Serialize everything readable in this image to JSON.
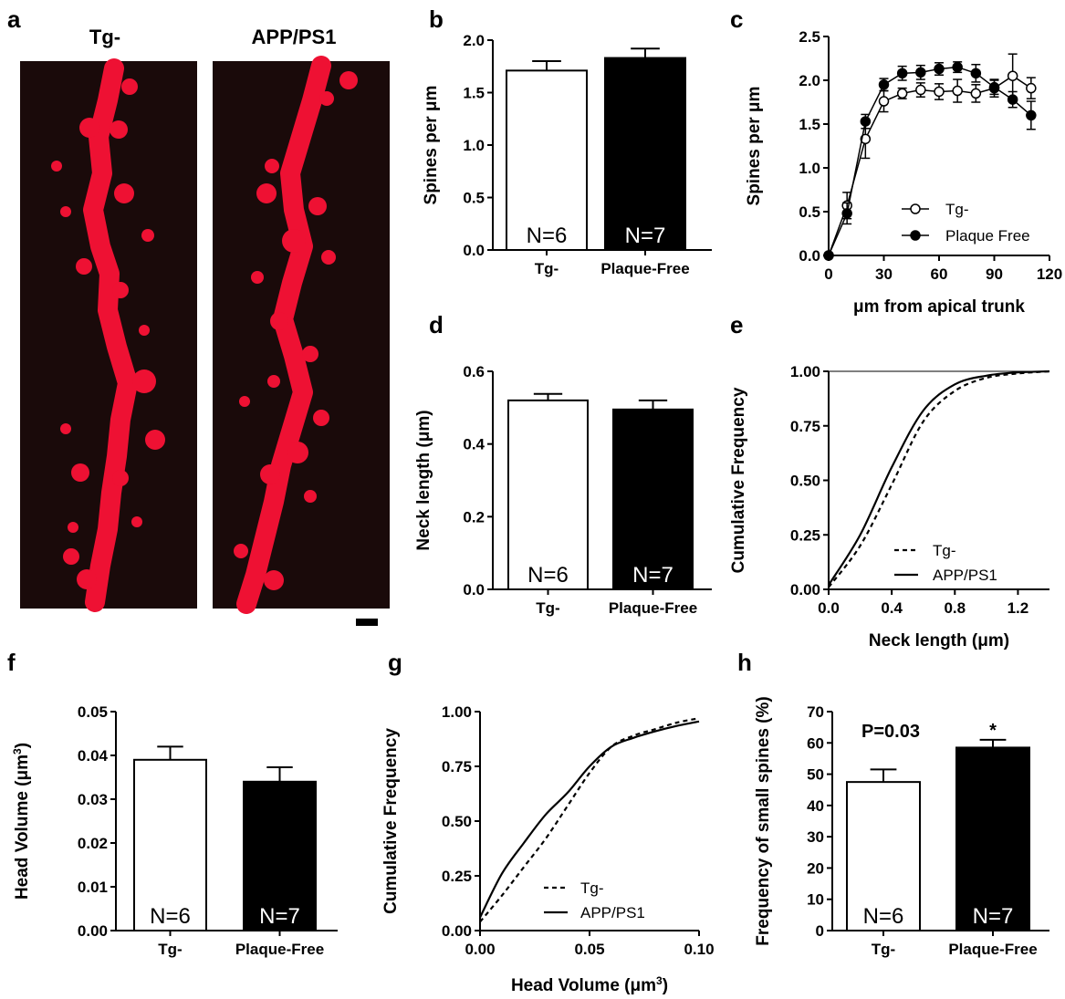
{
  "panel_a": {
    "label": "a",
    "left_title": "Tg-",
    "right_title": "APP/PS1"
  },
  "colors": {
    "dendrite": "#ee1133",
    "background": "#1a0a0a",
    "bar_tg": "#ffffff",
    "bar_pf": "#000000"
  },
  "chart_data": [
    {
      "id": "b",
      "label": "b",
      "type": "bar",
      "categories": [
        "Tg-",
        "Plaque-Free"
      ],
      "values": [
        1.71,
        1.83
      ],
      "errors": [
        0.09,
        0.09
      ],
      "n_labels": [
        "N=6",
        "N=7"
      ],
      "ylabel": "Spines per μm",
      "xlabel": "",
      "ylim": [
        0,
        2.0
      ],
      "yticks": [
        "0.0",
        "0.5",
        "1.0",
        "1.5",
        "2.0"
      ],
      "ytick_values": [
        0,
        0.5,
        1.0,
        1.5,
        2.0
      ],
      "fills": [
        "#ffffff",
        "#000000"
      ]
    },
    {
      "id": "c",
      "label": "c",
      "type": "line",
      "xlabel": "μm from apical trunk",
      "ylabel": "Spines per μm",
      "xlim": [
        0,
        120
      ],
      "ylim": [
        0,
        2.5
      ],
      "xticks": [
        "0",
        "30",
        "60",
        "90",
        "120"
      ],
      "xtick_values": [
        0,
        30,
        60,
        90,
        120
      ],
      "yticks": [
        "0.0",
        "0.5",
        "1.0",
        "1.5",
        "2.0",
        "2.5"
      ],
      "ytick_values": [
        0,
        0.5,
        1.0,
        1.5,
        2.0,
        2.5
      ],
      "legend_position": "bottom-right",
      "series": [
        {
          "name": "Tg-",
          "marker": "open-circle",
          "x": [
            0,
            10,
            20,
            30,
            40,
            50,
            60,
            70,
            80,
            90,
            100,
            110
          ],
          "y": [
            0,
            0.57,
            1.33,
            1.76,
            1.85,
            1.89,
            1.87,
            1.88,
            1.85,
            1.91,
            2.05,
            1.91
          ],
          "err": [
            0,
            0.15,
            0.22,
            0.12,
            0.06,
            0.08,
            0.09,
            0.13,
            0.1,
            0.1,
            0.25,
            0.12
          ]
        },
        {
          "name": "Plaque Free",
          "marker": "filled-circle",
          "x": [
            0,
            10,
            20,
            30,
            40,
            50,
            60,
            70,
            80,
            90,
            100,
            110
          ],
          "y": [
            0,
            0.48,
            1.53,
            1.95,
            2.08,
            2.09,
            2.13,
            2.15,
            2.08,
            1.92,
            1.78,
            1.6
          ],
          "err": [
            0,
            0.12,
            0.08,
            0.07,
            0.08,
            0.08,
            0.07,
            0.06,
            0.1,
            0.08,
            0.09,
            0.16
          ]
        }
      ]
    },
    {
      "id": "d",
      "label": "d",
      "type": "bar",
      "categories": [
        "Tg-",
        "Plaque-Free"
      ],
      "values": [
        0.52,
        0.495
      ],
      "errors": [
        0.018,
        0.025
      ],
      "n_labels": [
        "N=6",
        "N=7"
      ],
      "ylabel": "Neck length (μm)",
      "xlabel": "",
      "ylim": [
        0,
        0.6
      ],
      "yticks": [
        "0.0",
        "0.2",
        "0.4",
        "0.6"
      ],
      "ytick_values": [
        0,
        0.2,
        0.4,
        0.6
      ],
      "fills": [
        "#ffffff",
        "#000000"
      ]
    },
    {
      "id": "e",
      "label": "e",
      "type": "line",
      "xlabel": "Neck length (μm)",
      "ylabel": "Cumulative Frequency",
      "xlim": [
        0,
        1.4
      ],
      "ylim": [
        0,
        1.0
      ],
      "xticks": [
        "0.0",
        "0.4",
        "0.8",
        "1.2"
      ],
      "xtick_values": [
        0,
        0.4,
        0.8,
        1.2
      ],
      "yticks": [
        "0.00",
        "0.25",
        "0.50",
        "0.75",
        "1.00"
      ],
      "ytick_values": [
        0,
        0.25,
        0.5,
        0.75,
        1.0
      ],
      "legend_position": "bottom-center",
      "series": [
        {
          "name": "Tg-",
          "style": "dashed",
          "x": [
            0,
            0.2,
            0.4,
            0.6,
            0.8,
            1.0,
            1.2,
            1.4
          ],
          "y": [
            0.01,
            0.2,
            0.48,
            0.77,
            0.91,
            0.97,
            0.99,
            1.0
          ]
        },
        {
          "name": "APP/PS1",
          "style": "solid",
          "x": [
            0,
            0.2,
            0.4,
            0.6,
            0.8,
            1.0,
            1.2,
            1.4
          ],
          "y": [
            0.02,
            0.25,
            0.56,
            0.82,
            0.94,
            0.98,
            0.995,
            1.0
          ]
        }
      ]
    },
    {
      "id": "f",
      "label": "f",
      "type": "bar",
      "categories": [
        "Tg-",
        "Plaque-Free"
      ],
      "values": [
        0.039,
        0.034
      ],
      "errors": [
        0.003,
        0.0033
      ],
      "n_labels": [
        "N=6",
        "N=7"
      ],
      "ylabel": "Head Volume (μm³)",
      "xlabel": "",
      "ylim": [
        0,
        0.05
      ],
      "yticks": [
        "0.00",
        "0.01",
        "0.02",
        "0.03",
        "0.04",
        "0.05"
      ],
      "ytick_values": [
        0,
        0.01,
        0.02,
        0.03,
        0.04,
        0.05
      ],
      "fills": [
        "#ffffff",
        "#000000"
      ]
    },
    {
      "id": "g",
      "label": "g",
      "type": "line",
      "xlabel": "Head Volume (μm³)",
      "ylabel": "Cumulative Frequency",
      "xlim": [
        0,
        0.1
      ],
      "ylim": [
        0,
        1.0
      ],
      "xticks": [
        "0.00",
        "0.05",
        "0.10"
      ],
      "xtick_values": [
        0,
        0.05,
        0.1
      ],
      "yticks": [
        "0.00",
        "0.25",
        "0.50",
        "0.75",
        "1.00"
      ],
      "ytick_values": [
        0,
        0.25,
        0.5,
        0.75,
        1.0
      ],
      "legend_position": "bottom-center",
      "series": [
        {
          "name": "Tg-",
          "style": "dashed",
          "x": [
            0,
            0.01,
            0.02,
            0.03,
            0.04,
            0.05,
            0.06,
            0.07,
            0.08,
            0.09,
            0.1
          ],
          "y": [
            0.04,
            0.16,
            0.29,
            0.42,
            0.57,
            0.72,
            0.84,
            0.89,
            0.92,
            0.95,
            0.97
          ]
        },
        {
          "name": "APP/PS1",
          "style": "solid",
          "x": [
            0,
            0.01,
            0.02,
            0.03,
            0.04,
            0.05,
            0.06,
            0.07,
            0.08,
            0.09,
            0.1
          ],
          "y": [
            0.06,
            0.26,
            0.4,
            0.53,
            0.63,
            0.75,
            0.84,
            0.88,
            0.91,
            0.935,
            0.955
          ]
        }
      ]
    },
    {
      "id": "h",
      "label": "h",
      "type": "bar",
      "categories": [
        "Tg-",
        "Plaque-Free"
      ],
      "values": [
        47.5,
        58.5
      ],
      "errors": [
        4.0,
        2.5
      ],
      "n_labels": [
        "N=6",
        "N=7"
      ],
      "ylabel": "Frequency of small spines (%)",
      "xlabel": "",
      "ylim": [
        0,
        70
      ],
      "yticks": [
        "0",
        "10",
        "20",
        "30",
        "40",
        "50",
        "60",
        "70"
      ],
      "ytick_values": [
        0,
        10,
        20,
        30,
        40,
        50,
        60,
        70
      ],
      "fills": [
        "#ffffff",
        "#000000"
      ],
      "annotation": "P=0.03",
      "significance": "*"
    }
  ]
}
